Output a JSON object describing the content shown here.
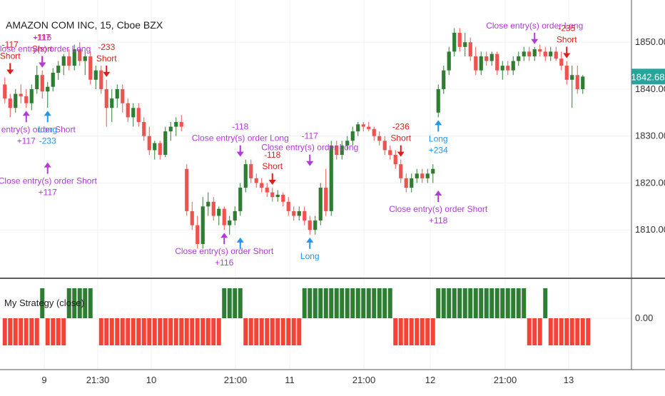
{
  "colors": {
    "up": "#2e7d32",
    "down": "#ef5350",
    "osc_pos": "#2e7d32",
    "osc_neg": "#f44336",
    "long": "#2196f3",
    "short": "#e01b1b",
    "close": "#b13ad8",
    "last_price_bg": "#26a69a"
  },
  "chart_data": [
    {
      "type": "candlestick",
      "title": "AMAZON COM INC, 15, Cboe BZX",
      "ylim": [
        1800,
        1859
      ],
      "y_ticks": [
        "1810.00",
        "1820.00",
        "1830.00",
        "1840.00",
        "1850.00"
      ],
      "x_labels": [
        "9",
        "21:30",
        "10",
        "21:00",
        "11",
        "21:00",
        "12",
        "21:00",
        "13"
      ],
      "last_price": "1842.68",
      "series": [
        {
          "o": 1841.0,
          "h": 1842.5,
          "l": 1837.0,
          "c": 1838.0
        },
        {
          "o": 1838.0,
          "h": 1839.0,
          "l": 1834.0,
          "c": 1836.0
        },
        {
          "o": 1836.0,
          "h": 1840.0,
          "l": 1835.0,
          "c": 1839.0
        },
        {
          "o": 1839.0,
          "h": 1841.0,
          "l": 1837.0,
          "c": 1838.5
        },
        {
          "o": 1838.5,
          "h": 1840.0,
          "l": 1836.0,
          "c": 1837.0
        },
        {
          "o": 1837.0,
          "h": 1841.0,
          "l": 1835.5,
          "c": 1840.0
        },
        {
          "o": 1840.0,
          "h": 1845.0,
          "l": 1839.0,
          "c": 1843.0
        },
        {
          "o": 1843.0,
          "h": 1844.0,
          "l": 1838.0,
          "c": 1839.5
        },
        {
          "o": 1839.5,
          "h": 1841.5,
          "l": 1836.0,
          "c": 1840.5
        },
        {
          "o": 1840.5,
          "h": 1844.5,
          "l": 1839.5,
          "c": 1843.5
        },
        {
          "o": 1843.5,
          "h": 1846.0,
          "l": 1842.0,
          "c": 1845.0
        },
        {
          "o": 1845.0,
          "h": 1847.5,
          "l": 1843.0,
          "c": 1847.0
        },
        {
          "o": 1847.0,
          "h": 1848.5,
          "l": 1844.0,
          "c": 1845.0
        },
        {
          "o": 1845.0,
          "h": 1849.5,
          "l": 1844.0,
          "c": 1848.5
        },
        {
          "o": 1848.5,
          "h": 1850.0,
          "l": 1845.0,
          "c": 1846.0
        },
        {
          "o": 1846.0,
          "h": 1848.0,
          "l": 1843.0,
          "c": 1847.0
        },
        {
          "o": 1847.0,
          "h": 1848.0,
          "l": 1841.0,
          "c": 1842.0
        },
        {
          "o": 1842.0,
          "h": 1845.0,
          "l": 1840.0,
          "c": 1844.0
        },
        {
          "o": 1844.0,
          "h": 1845.0,
          "l": 1839.0,
          "c": 1840.0
        },
        {
          "o": 1840.0,
          "h": 1842.0,
          "l": 1832.0,
          "c": 1836.0
        },
        {
          "o": 1836.0,
          "h": 1840.0,
          "l": 1833.0,
          "c": 1838.0
        },
        {
          "o": 1838.0,
          "h": 1841.0,
          "l": 1836.0,
          "c": 1840.0
        },
        {
          "o": 1840.0,
          "h": 1841.0,
          "l": 1835.0,
          "c": 1837.0
        },
        {
          "o": 1837.0,
          "h": 1838.0,
          "l": 1833.0,
          "c": 1834.0
        },
        {
          "o": 1834.0,
          "h": 1837.0,
          "l": 1832.0,
          "c": 1836.0
        },
        {
          "o": 1836.0,
          "h": 1837.0,
          "l": 1832.0,
          "c": 1833.0
        },
        {
          "o": 1833.0,
          "h": 1834.0,
          "l": 1829.0,
          "c": 1830.0
        },
        {
          "o": 1830.0,
          "h": 1832.0,
          "l": 1826.0,
          "c": 1827.0
        },
        {
          "o": 1827.0,
          "h": 1829.0,
          "l": 1825.0,
          "c": 1828.5
        },
        {
          "o": 1828.5,
          "h": 1829.0,
          "l": 1825.0,
          "c": 1826.0
        },
        {
          "o": 1826.0,
          "h": 1832.0,
          "l": 1825.5,
          "c": 1831.0
        },
        {
          "o": 1831.0,
          "h": 1833.0,
          "l": 1829.0,
          "c": 1832.0
        },
        {
          "o": 1832.0,
          "h": 1834.0,
          "l": 1830.0,
          "c": 1833.0
        },
        {
          "o": 1833.0,
          "h": 1834.5,
          "l": 1831.0,
          "c": 1832.0
        },
        {
          "o": 1823.0,
          "h": 1824.0,
          "l": 1813.0,
          "c": 1814.0
        },
        {
          "o": 1814.0,
          "h": 1816.0,
          "l": 1810.0,
          "c": 1811.0
        },
        {
          "o": 1811.0,
          "h": 1813.0,
          "l": 1806.0,
          "c": 1807.0
        },
        {
          "o": 1807.0,
          "h": 1817.0,
          "l": 1806.0,
          "c": 1815.0
        },
        {
          "o": 1815.0,
          "h": 1818.0,
          "l": 1813.0,
          "c": 1816.0
        },
        {
          "o": 1816.0,
          "h": 1817.0,
          "l": 1812.0,
          "c": 1813.0
        },
        {
          "o": 1813.0,
          "h": 1815.0,
          "l": 1811.0,
          "c": 1814.5
        },
        {
          "o": 1814.5,
          "h": 1815.0,
          "l": 1810.0,
          "c": 1811.0
        },
        {
          "o": 1811.0,
          "h": 1813.0,
          "l": 1809.0,
          "c": 1812.0
        },
        {
          "o": 1812.0,
          "h": 1815.0,
          "l": 1811.0,
          "c": 1814.0
        },
        {
          "o": 1814.0,
          "h": 1820.0,
          "l": 1813.0,
          "c": 1819.0
        },
        {
          "o": 1819.0,
          "h": 1825.0,
          "l": 1818.0,
          "c": 1824.0
        },
        {
          "o": 1824.0,
          "h": 1825.0,
          "l": 1820.0,
          "c": 1821.0
        },
        {
          "o": 1821.0,
          "h": 1822.0,
          "l": 1819.0,
          "c": 1820.0
        },
        {
          "o": 1820.0,
          "h": 1821.0,
          "l": 1818.0,
          "c": 1819.0
        },
        {
          "o": 1819.0,
          "h": 1820.0,
          "l": 1817.0,
          "c": 1818.0
        },
        {
          "o": 1818.0,
          "h": 1819.0,
          "l": 1816.0,
          "c": 1817.0
        },
        {
          "o": 1817.0,
          "h": 1818.5,
          "l": 1816.0,
          "c": 1817.5
        },
        {
          "o": 1817.5,
          "h": 1818.0,
          "l": 1815.0,
          "c": 1816.0
        },
        {
          "o": 1816.0,
          "h": 1817.0,
          "l": 1813.0,
          "c": 1814.0
        },
        {
          "o": 1814.0,
          "h": 1815.0,
          "l": 1812.0,
          "c": 1813.0
        },
        {
          "o": 1813.0,
          "h": 1815.0,
          "l": 1812.0,
          "c": 1814.0
        },
        {
          "o": 1814.0,
          "h": 1815.0,
          "l": 1811.0,
          "c": 1812.0
        },
        {
          "o": 1812.0,
          "h": 1813.0,
          "l": 1809.0,
          "c": 1810.0
        },
        {
          "o": 1810.0,
          "h": 1813.0,
          "l": 1809.0,
          "c": 1812.0
        },
        {
          "o": 1812.0,
          "h": 1820.0,
          "l": 1811.0,
          "c": 1819.0
        },
        {
          "o": 1819.0,
          "h": 1823.0,
          "l": 1813.0,
          "c": 1814.0
        },
        {
          "o": 1814.0,
          "h": 1829.0,
          "l": 1813.0,
          "c": 1828.0
        },
        {
          "o": 1828.0,
          "h": 1829.0,
          "l": 1825.0,
          "c": 1826.0
        },
        {
          "o": 1826.0,
          "h": 1829.0,
          "l": 1825.0,
          "c": 1828.0
        },
        {
          "o": 1828.0,
          "h": 1830.0,
          "l": 1827.0,
          "c": 1829.0
        },
        {
          "o": 1829.0,
          "h": 1832.0,
          "l": 1828.0,
          "c": 1831.0
        },
        {
          "o": 1831.0,
          "h": 1833.0,
          "l": 1830.0,
          "c": 1832.5
        },
        {
          "o": 1832.5,
          "h": 1833.0,
          "l": 1831.0,
          "c": 1832.0
        },
        {
          "o": 1832.0,
          "h": 1833.0,
          "l": 1831.0,
          "c": 1831.5
        },
        {
          "o": 1831.5,
          "h": 1832.0,
          "l": 1829.0,
          "c": 1830.0
        },
        {
          "o": 1830.0,
          "h": 1831.0,
          "l": 1828.0,
          "c": 1829.0
        },
        {
          "o": 1829.0,
          "h": 1830.0,
          "l": 1826.0,
          "c": 1827.0
        },
        {
          "o": 1827.0,
          "h": 1828.0,
          "l": 1825.0,
          "c": 1826.0
        },
        {
          "o": 1826.0,
          "h": 1827.0,
          "l": 1823.0,
          "c": 1824.0
        },
        {
          "o": 1824.0,
          "h": 1825.0,
          "l": 1820.0,
          "c": 1821.0
        },
        {
          "o": 1821.0,
          "h": 1822.0,
          "l": 1818.0,
          "c": 1819.0
        },
        {
          "o": 1819.0,
          "h": 1822.0,
          "l": 1818.0,
          "c": 1821.0
        },
        {
          "o": 1821.0,
          "h": 1823.0,
          "l": 1820.0,
          "c": 1822.0
        },
        {
          "o": 1822.0,
          "h": 1823.0,
          "l": 1820.0,
          "c": 1821.0
        },
        {
          "o": 1821.0,
          "h": 1823.0,
          "l": 1820.0,
          "c": 1822.0
        },
        {
          "o": 1822.0,
          "h": 1824.0,
          "l": 1820.0,
          "c": 1823.0
        },
        {
          "o": 1835.0,
          "h": 1841.0,
          "l": 1834.0,
          "c": 1840.0
        },
        {
          "o": 1840.0,
          "h": 1845.0,
          "l": 1839.0,
          "c": 1844.0
        },
        {
          "o": 1844.0,
          "h": 1849.0,
          "l": 1843.0,
          "c": 1848.0
        },
        {
          "o": 1848.0,
          "h": 1853.0,
          "l": 1847.0,
          "c": 1852.0
        },
        {
          "o": 1852.0,
          "h": 1853.0,
          "l": 1848.0,
          "c": 1849.0
        },
        {
          "o": 1849.0,
          "h": 1852.0,
          "l": 1847.0,
          "c": 1850.0
        },
        {
          "o": 1850.0,
          "h": 1851.0,
          "l": 1846.0,
          "c": 1847.0
        },
        {
          "o": 1847.0,
          "h": 1849.0,
          "l": 1843.0,
          "c": 1844.0
        },
        {
          "o": 1844.0,
          "h": 1848.0,
          "l": 1843.0,
          "c": 1847.0
        },
        {
          "o": 1847.0,
          "h": 1848.0,
          "l": 1845.0,
          "c": 1846.0
        },
        {
          "o": 1846.0,
          "h": 1848.0,
          "l": 1845.0,
          "c": 1847.5
        },
        {
          "o": 1847.5,
          "h": 1848.0,
          "l": 1843.0,
          "c": 1844.0
        },
        {
          "o": 1844.0,
          "h": 1846.0,
          "l": 1842.0,
          "c": 1845.0
        },
        {
          "o": 1845.0,
          "h": 1846.0,
          "l": 1843.0,
          "c": 1844.0
        },
        {
          "o": 1844.0,
          "h": 1847.0,
          "l": 1843.0,
          "c": 1846.0
        },
        {
          "o": 1846.0,
          "h": 1848.0,
          "l": 1845.0,
          "c": 1847.0
        },
        {
          "o": 1847.0,
          "h": 1849.0,
          "l": 1846.0,
          "c": 1848.0
        },
        {
          "o": 1848.0,
          "h": 1849.0,
          "l": 1846.0,
          "c": 1847.0
        },
        {
          "o": 1847.0,
          "h": 1849.0,
          "l": 1846.0,
          "c": 1848.5
        },
        {
          "o": 1848.5,
          "h": 1849.5,
          "l": 1847.0,
          "c": 1848.0
        },
        {
          "o": 1848.0,
          "h": 1849.0,
          "l": 1846.0,
          "c": 1847.0
        },
        {
          "o": 1847.0,
          "h": 1849.0,
          "l": 1846.0,
          "c": 1848.0
        },
        {
          "o": 1848.0,
          "h": 1849.0,
          "l": 1846.0,
          "c": 1846.5
        },
        {
          "o": 1846.5,
          "h": 1848.0,
          "l": 1844.0,
          "c": 1845.0
        },
        {
          "o": 1845.0,
          "h": 1846.0,
          "l": 1841.0,
          "c": 1842.0
        },
        {
          "o": 1842.0,
          "h": 1845.0,
          "l": 1836.0,
          "c": 1843.0
        },
        {
          "o": 1843.0,
          "h": 1845.0,
          "l": 1839.0,
          "c": 1840.0
        },
        {
          "o": 1840.0,
          "h": 1843.0,
          "l": 1839.0,
          "c": 1842.68
        }
      ],
      "signals": [
        {
          "i": 1,
          "type": "short",
          "dir": "down",
          "label": "Short",
          "value": "-117",
          "price": 1842.5
        },
        {
          "i": 7,
          "type": "short",
          "dir": "down",
          "label": "Short",
          "value": "-117",
          "price": 1844
        },
        {
          "i": 7,
          "type": "close",
          "dir": "down",
          "label": "Close entry(s) order Long",
          "value": "+116",
          "price": 1844
        },
        {
          "i": 4,
          "type": "close",
          "dir": "up",
          "label": "Close entry(s) order Short",
          "value": "+117",
          "price": 1836
        },
        {
          "i": 8,
          "type": "long",
          "dir": "up",
          "label": "Long",
          "value": "-233",
          "price": 1836
        },
        {
          "i": 8,
          "type": "close",
          "dir": "up",
          "label": "Close entry(s) order Short",
          "value": "+117",
          "price": 1825
        },
        {
          "i": 19,
          "type": "short",
          "dir": "down",
          "label": "Short",
          "value": "-233",
          "price": 1842
        },
        {
          "i": 41,
          "type": "close",
          "dir": "up",
          "label": "Close entry(s) order Short",
          "value": "+116",
          "price": 1810
        },
        {
          "i": 44,
          "type": "long",
          "dir": "up",
          "label": "",
          "value": "",
          "price": 1809
        },
        {
          "i": 44,
          "type": "close",
          "dir": "down",
          "label": "Close entry(s) order Long",
          "value": "-118",
          "price": 1825
        },
        {
          "i": 50,
          "type": "short",
          "dir": "down",
          "label": "Short",
          "value": "-118",
          "price": 1819
        },
        {
          "i": 57,
          "type": "close",
          "dir": "down",
          "label": "Close entry(s) order Long",
          "value": "-117",
          "price": 1823
        },
        {
          "i": 57,
          "type": "long",
          "dir": "up",
          "label": "Long",
          "value": "",
          "price": 1809
        },
        {
          "i": 74,
          "type": "short",
          "dir": "down",
          "label": "Short",
          "value": "-236",
          "price": 1825
        },
        {
          "i": 81,
          "type": "long",
          "dir": "up",
          "label": "Long",
          "value": "+234",
          "price": 1834
        },
        {
          "i": 81,
          "type": "close",
          "dir": "up",
          "label": "Close entry(s) order Short",
          "value": "+118",
          "price": 1819
        },
        {
          "i": 99,
          "type": "close",
          "dir": "down",
          "label": "Close entry(s) order Long",
          "value": "",
          "price": 1849
        },
        {
          "i": 105,
          "type": "short",
          "dir": "down",
          "label": "Short",
          "value": "-235",
          "price": 1846
        }
      ]
    },
    {
      "type": "bar",
      "title": "My Strategy (close)",
      "ylim": [
        -1,
        1
      ],
      "y_ticks": [
        "0.00"
      ],
      "values": [
        -1,
        -1,
        -1,
        -1,
        -1,
        -1,
        -1,
        1,
        -1,
        -1,
        -1,
        -1,
        1,
        1,
        1,
        1,
        1,
        0,
        -1,
        -1,
        -1,
        -1,
        -1,
        -1,
        -1,
        -1,
        -1,
        -1,
        -1,
        -1,
        -1,
        -1,
        -1,
        -1,
        -1,
        -1,
        -1,
        -1,
        -1,
        -1,
        -1,
        1,
        1,
        1,
        1,
        -1,
        -1,
        -1,
        -1,
        -1,
        -1,
        -1,
        -1,
        -1,
        -1,
        -1,
        1,
        1,
        1,
        1,
        1,
        1,
        1,
        1,
        1,
        1,
        1,
        1,
        1,
        1,
        1,
        1,
        1,
        -1,
        -1,
        -1,
        -1,
        -1,
        -1,
        -1,
        -1,
        1,
        1,
        1,
        1,
        1,
        1,
        1,
        1,
        1,
        1,
        1,
        1,
        1,
        1,
        1,
        1,
        1,
        -1,
        -1,
        -1,
        1,
        -1,
        -1,
        -1,
        -1,
        -1,
        -1,
        -1,
        -1
      ]
    }
  ]
}
